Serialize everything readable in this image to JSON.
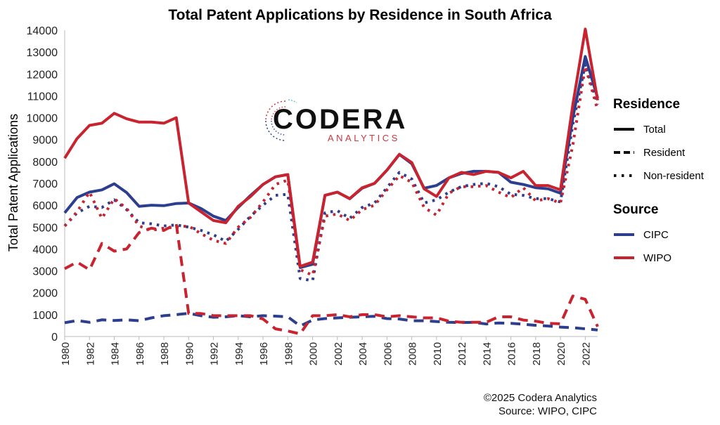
{
  "chart_data": {
    "type": "line",
    "title": "Total Patent Applications by Residence in South Africa",
    "xlabel": "",
    "ylabel": "Total Patent Applications",
    "xlim": [
      1980,
      2023
    ],
    "ylim": [
      0,
      14000
    ],
    "yticks": [
      0,
      1000,
      2000,
      3000,
      4000,
      5000,
      6000,
      7000,
      8000,
      9000,
      10000,
      11000,
      12000,
      13000,
      14000
    ],
    "xticks": [
      1980,
      1982,
      1984,
      1986,
      1988,
      1990,
      1992,
      1994,
      1996,
      1998,
      2000,
      2002,
      2004,
      2006,
      2008,
      2010,
      2012,
      2014,
      2016,
      2018,
      2020,
      2022
    ],
    "x": [
      1980,
      1981,
      1982,
      1983,
      1984,
      1985,
      1986,
      1987,
      1988,
      1989,
      1990,
      1991,
      1992,
      1993,
      1994,
      1995,
      1996,
      1997,
      1998,
      1999,
      2000,
      2001,
      2002,
      2003,
      2004,
      2005,
      2006,
      2007,
      2008,
      2009,
      2010,
      2011,
      2012,
      2013,
      2014,
      2015,
      2016,
      2017,
      2018,
      2019,
      2020,
      2021,
      2022,
      2023
    ],
    "series": [
      {
        "source": "CIPC",
        "residence": "Total",
        "values": [
          5650,
          6350,
          6600,
          6700,
          6980,
          6580,
          5950,
          6000,
          5980,
          6080,
          6100,
          5850,
          5500,
          5300,
          5900,
          6450,
          6950,
          7300,
          7400,
          3150,
          3300,
          6450,
          6600,
          6300,
          6780,
          7000,
          7600,
          8320,
          7900,
          6780,
          6900,
          7250,
          7450,
          7550,
          7550,
          7500,
          7050,
          6950,
          6800,
          6750,
          6550,
          10000,
          12800,
          10900
        ]
      },
      {
        "source": "CIPC",
        "residence": "Resident",
        "values": [
          630,
          730,
          650,
          760,
          730,
          760,
          720,
          850,
          950,
          1000,
          1060,
          950,
          880,
          900,
          950,
          900,
          950,
          930,
          900,
          480,
          750,
          820,
          850,
          880,
          900,
          920,
          820,
          800,
          720,
          720,
          680,
          650,
          640,
          650,
          570,
          620,
          600,
          560,
          510,
          480,
          430,
          400,
          350,
          300
        ]
      },
      {
        "source": "CIPC",
        "residence": "Non-resident",
        "values": [
          5050,
          5650,
          5950,
          5900,
          6250,
          5800,
          5200,
          5150,
          5050,
          5100,
          5000,
          4850,
          4650,
          4350,
          4900,
          5500,
          6000,
          6450,
          6500,
          2650,
          2550,
          5650,
          5750,
          5400,
          5900,
          6100,
          6800,
          7500,
          7200,
          6100,
          6250,
          6600,
          6850,
          6950,
          7000,
          6850,
          6500,
          6450,
          6300,
          6300,
          6150,
          9700,
          12450,
          10600
        ]
      },
      {
        "source": "WIPO",
        "residence": "Total",
        "values": [
          8150,
          9050,
          9650,
          9750,
          10200,
          9950,
          9800,
          9800,
          9750,
          10000,
          6100,
          5700,
          5300,
          5200,
          5950,
          6400,
          6950,
          7300,
          7400,
          3200,
          3400,
          6450,
          6600,
          6300,
          6800,
          7000,
          7600,
          8330,
          7950,
          6750,
          6400,
          7250,
          7500,
          7400,
          7550,
          7500,
          7250,
          7550,
          6900,
          6900,
          6700,
          10600,
          14050,
          10800
        ]
      },
      {
        "source": "WIPO",
        "residence": "Resident",
        "values": [
          3100,
          3400,
          3050,
          4250,
          3900,
          4000,
          4750,
          4950,
          4850,
          5150,
          1050,
          1050,
          950,
          950,
          950,
          950,
          800,
          350,
          250,
          120,
          950,
          950,
          1000,
          900,
          1000,
          1000,
          900,
          950,
          900,
          850,
          850,
          700,
          650,
          650,
          650,
          900,
          900,
          750,
          700,
          600,
          580,
          1850,
          1700,
          450
        ]
      },
      {
        "source": "WIPO",
        "residence": "Non-resident",
        "values": [
          5050,
          5700,
          6600,
          5400,
          6300,
          5850,
          5050,
          4850,
          4950,
          5000,
          5050,
          4700,
          4400,
          4250,
          5000,
          5450,
          6150,
          6950,
          7150,
          3050,
          2800,
          5500,
          5600,
          5300,
          5800,
          6000,
          6700,
          7350,
          7050,
          5900,
          5550,
          6550,
          6850,
          6850,
          6900,
          6600,
          6350,
          6800,
          6200,
          6300,
          6100,
          8750,
          12350,
          10350
        ]
      }
    ],
    "colors": {
      "CIPC": "#2d3e8e",
      "WIPO": "#c8232f"
    },
    "legend_position": "right",
    "grid": false
  },
  "legend": {
    "residence_title": "Residence",
    "residence_items": [
      {
        "label": "Total",
        "dash": "solid"
      },
      {
        "label": "Resident",
        "dash": "dashed"
      },
      {
        "label": "Non-resident",
        "dash": "dotted"
      }
    ],
    "source_title": "Source",
    "source_items": [
      {
        "label": "CIPC",
        "color": "#2d3e8e"
      },
      {
        "label": "WIPO",
        "color": "#c8232f"
      }
    ]
  },
  "logo": {
    "name": "CODERA",
    "sub": "ANALYTICS"
  },
  "footer": {
    "copyright": "©2025 Codera Analytics",
    "source": "Source: WIPO, CIPC"
  }
}
